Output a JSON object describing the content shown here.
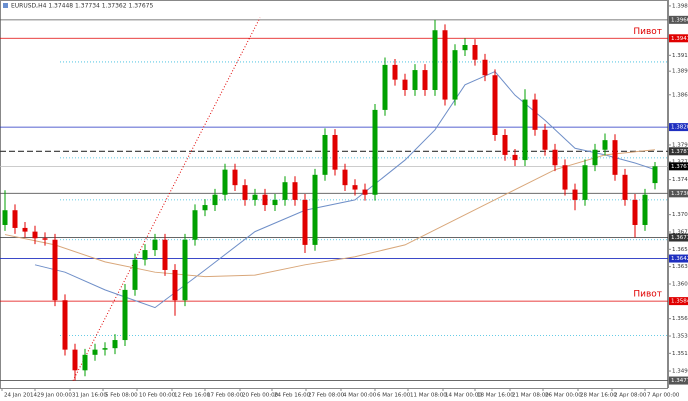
{
  "chart_data": {
    "type": "candlestick",
    "title": "EURUSD,H4 1.37448 1.37734 1.37362 1.37675",
    "xlim": [
      -0.5,
      66.3
    ],
    "ylim": [
      1.3467,
      1.3993
    ],
    "up_color": "#00a000",
    "down_color": "#e00000",
    "candles": [
      [
        1.3688,
        1.3735,
        1.368,
        1.3708
      ],
      [
        1.3708,
        1.3716,
        1.3676,
        1.3684
      ],
      [
        1.3684,
        1.3692,
        1.3671,
        1.3679
      ],
      [
        1.3679,
        1.3687,
        1.3662,
        1.367
      ],
      [
        1.367,
        1.3678,
        1.366,
        1.3668
      ],
      [
        1.3668,
        1.3676,
        1.3578,
        1.3586
      ],
      [
        1.3586,
        1.3594,
        1.3511,
        1.3519
      ],
      [
        1.3519,
        1.3527,
        1.3477,
        1.3491
      ],
      [
        1.3491,
        1.352,
        1.3483,
        1.3512
      ],
      [
        1.3512,
        1.3527,
        1.3504,
        1.3519
      ],
      [
        1.3519,
        1.3529,
        1.3511,
        1.3521
      ],
      [
        1.3521,
        1.354,
        1.3513,
        1.3532
      ],
      [
        1.3532,
        1.3608,
        1.3524,
        1.36
      ],
      [
        1.36,
        1.3649,
        1.3592,
        1.3641
      ],
      [
        1.3641,
        1.3662,
        1.3633,
        1.3654
      ],
      [
        1.3654,
        1.3676,
        1.3646,
        1.3668
      ],
      [
        1.3668,
        1.3676,
        1.3619,
        1.3627
      ],
      [
        1.3627,
        1.3635,
        1.3565,
        1.3586
      ],
      [
        1.3586,
        1.3676,
        1.3578,
        1.3668
      ],
      [
        1.3668,
        1.3716,
        1.366,
        1.3708
      ],
      [
        1.3708,
        1.3723,
        1.37,
        1.3715
      ],
      [
        1.3715,
        1.3737,
        1.3707,
        1.3729
      ],
      [
        1.3729,
        1.3771,
        1.3721,
        1.3763
      ],
      [
        1.3763,
        1.3771,
        1.3734,
        1.3742
      ],
      [
        1.3742,
        1.375,
        1.3714,
        1.3722
      ],
      [
        1.3722,
        1.3737,
        1.3714,
        1.3729
      ],
      [
        1.3729,
        1.3737,
        1.3707,
        1.3715
      ],
      [
        1.3715,
        1.373,
        1.3707,
        1.3722
      ],
      [
        1.3722,
        1.3754,
        1.3714,
        1.3746
      ],
      [
        1.3746,
        1.3754,
        1.3714,
        1.3722
      ],
      [
        1.3722,
        1.373,
        1.365,
        1.3661
      ],
      [
        1.3661,
        1.3764,
        1.3653,
        1.3756
      ],
      [
        1.3756,
        1.3819,
        1.3748,
        1.381
      ],
      [
        1.381,
        1.3818,
        1.3755,
        1.3763
      ],
      [
        1.3763,
        1.3771,
        1.3734,
        1.3742
      ],
      [
        1.3742,
        1.375,
        1.3728,
        1.3736
      ],
      [
        1.3736,
        1.3744,
        1.3721,
        1.3729
      ],
      [
        1.3729,
        1.3852,
        1.3721,
        1.3844
      ],
      [
        1.3844,
        1.3915,
        1.3836,
        1.3905
      ],
      [
        1.3905,
        1.3913,
        1.3877,
        1.3885
      ],
      [
        1.3885,
        1.3893,
        1.3863,
        1.3871
      ],
      [
        1.3871,
        1.3906,
        1.3863,
        1.3898
      ],
      [
        1.3898,
        1.3906,
        1.3863,
        1.3871
      ],
      [
        1.3871,
        1.3966,
        1.3863,
        1.3952
      ],
      [
        1.3952,
        1.396,
        1.385,
        1.3858
      ],
      [
        1.3858,
        1.3933,
        1.385,
        1.3925
      ],
      [
        1.3925,
        1.3941,
        1.3917,
        1.3932
      ],
      [
        1.3932,
        1.394,
        1.3904,
        1.3912
      ],
      [
        1.3912,
        1.392,
        1.3883,
        1.3891
      ],
      [
        1.3891,
        1.3899,
        1.3802,
        1.381
      ],
      [
        1.381,
        1.3818,
        1.3775,
        1.3783
      ],
      [
        1.3783,
        1.3791,
        1.3768,
        1.3776
      ],
      [
        1.3776,
        1.3872,
        1.3768,
        1.3858
      ],
      [
        1.3858,
        1.3866,
        1.3809,
        1.3817
      ],
      [
        1.3817,
        1.3825,
        1.3782,
        1.379
      ],
      [
        1.379,
        1.3798,
        1.3761,
        1.3769
      ],
      [
        1.3769,
        1.3777,
        1.3728,
        1.3736
      ],
      [
        1.3736,
        1.3744,
        1.3708,
        1.3722
      ],
      [
        1.3722,
        1.3777,
        1.3714,
        1.3769
      ],
      [
        1.3769,
        1.3798,
        1.3761,
        1.379
      ],
      [
        1.379,
        1.3812,
        1.3782,
        1.3803
      ],
      [
        1.3803,
        1.3811,
        1.3748,
        1.3756
      ],
      [
        1.3756,
        1.3764,
        1.3714,
        1.3722
      ],
      [
        1.3722,
        1.373,
        1.3671,
        1.3688
      ],
      [
        1.3688,
        1.3737,
        1.368,
        1.3729
      ],
      [
        1.37448,
        1.37734,
        1.37362,
        1.37675
      ]
    ],
    "series": [
      {
        "color": "#6f8fc8",
        "x": [
          3,
          6,
          10,
          15,
          20,
          25,
          30,
          35,
          40,
          43,
          46,
          49,
          51,
          54,
          57,
          60,
          63,
          65
        ],
        "values": [
          1.3634,
          1.3624,
          1.36,
          1.3576,
          1.3627,
          1.3679,
          1.3708,
          1.3722,
          1.3776,
          1.3817,
          1.3878,
          1.3896,
          1.3864,
          1.383,
          1.3792,
          1.3783,
          1.3772,
          1.3763
        ]
      },
      {
        "color": "#d9a77a",
        "x": [
          0,
          5,
          10,
          15,
          20,
          25,
          30,
          35,
          40,
          45,
          50,
          55,
          60,
          65
        ],
        "values": [
          1.3675,
          1.3661,
          1.3638,
          1.3624,
          1.3618,
          1.362,
          1.3634,
          1.3645,
          1.3661,
          1.3695,
          1.3729,
          1.3763,
          1.3783,
          1.379
        ]
      }
    ],
    "fib": {
      "color": "#33bbdd",
      "values": [
        1.3909,
        1.3779,
        1.3722,
        1.3668,
        1.3538
      ]
    },
    "trendline": {
      "color": "#e00000",
      "x": [
        6.8,
        25.5
      ],
      "values": [
        1.3477,
        1.3969
      ]
    },
    "levels": [
      {
        "value": 1.39661,
        "color": "#555555",
        "style": "solid"
      },
      {
        "value": 1.39411,
        "color": "#e00000",
        "style": "solid",
        "label": "Пивот"
      },
      {
        "value": 1.38207,
        "color": "#1f2fc0",
        "style": "solid"
      },
      {
        "value": 1.37879,
        "color": "#333333",
        "style": "dashed"
      },
      {
        "value": 1.37675,
        "color": "#000000",
        "style": "light"
      },
      {
        "value": 1.37309,
        "color": "#555555",
        "style": "solid"
      },
      {
        "value": 1.3671,
        "color": "#333333",
        "style": "solid"
      },
      {
        "value": 1.36425,
        "color": "#1f2fc0",
        "style": "solid"
      },
      {
        "value": 1.35848,
        "color": "#e00000",
        "style": "solid",
        "label": "Пивот"
      },
      {
        "value": 1.34771,
        "color": "#555555",
        "style": "solid"
      }
    ],
    "yticks": [
      {
        "value": 1.3985,
        "label": "1.39850"
      },
      {
        "value": 1.3918,
        "label": "1.39180"
      },
      {
        "value": 1.38965,
        "label": "1.38965"
      },
      {
        "value": 1.38645,
        "label": "1.38645"
      },
      {
        "value": 1.37965,
        "label": "1.37965"
      },
      {
        "value": 1.37735,
        "label": "1.37735"
      },
      {
        "value": 1.37495,
        "label": "1.37495"
      },
      {
        "value": 1.3702,
        "label": "1.37020"
      },
      {
        "value": 1.36785,
        "label": "1.36785"
      },
      {
        "value": 1.3655,
        "label": "1.36550"
      },
      {
        "value": 1.36315,
        "label": "1.36315"
      },
      {
        "value": 1.3608,
        "label": "1.36080"
      },
      {
        "value": 1.3561,
        "label": "1.35610"
      },
      {
        "value": 1.35375,
        "label": "1.35375"
      },
      {
        "value": 1.3514,
        "label": "1.35140"
      },
      {
        "value": 1.349,
        "label": "1.34900"
      }
    ],
    "xticks": [
      {
        "value": -0.3,
        "label": "24 Jan 2014"
      },
      {
        "value": 3.0,
        "label": "29 Jan 00:00"
      },
      {
        "value": 6.5,
        "label": "31 Jan 16:00"
      },
      {
        "value": 9.8,
        "label": "5 Feb 08:00"
      },
      {
        "value": 13.2,
        "label": "10 Feb 00:00"
      },
      {
        "value": 16.7,
        "label": "12 Feb 16:00"
      },
      {
        "value": 20.0,
        "label": "17 Feb 08:00"
      },
      {
        "value": 23.5,
        "label": "20 Feb 00:00"
      },
      {
        "value": 26.7,
        "label": "24 Feb 16:00"
      },
      {
        "value": 30.1,
        "label": "27 Feb 08:00"
      },
      {
        "value": 33.6,
        "label": "4 Mar 00:00"
      },
      {
        "value": 37.0,
        "label": "6 Mar 16:00"
      },
      {
        "value": 40.3,
        "label": "11 Mar 08:00"
      },
      {
        "value": 43.8,
        "label": "14 Mar 00:00"
      },
      {
        "value": 47.0,
        "label": "18 Mar 16:00"
      },
      {
        "value": 50.5,
        "label": "21 Mar 08:00"
      },
      {
        "value": 53.8,
        "label": "26 Mar 00:00"
      },
      {
        "value": 57.3,
        "label": "28 Mar 16:00"
      },
      {
        "value": 60.7,
        "label": "2 Apr 08:00"
      },
      {
        "value": 64.0,
        "label": "7 Apr 00:00"
      }
    ]
  }
}
